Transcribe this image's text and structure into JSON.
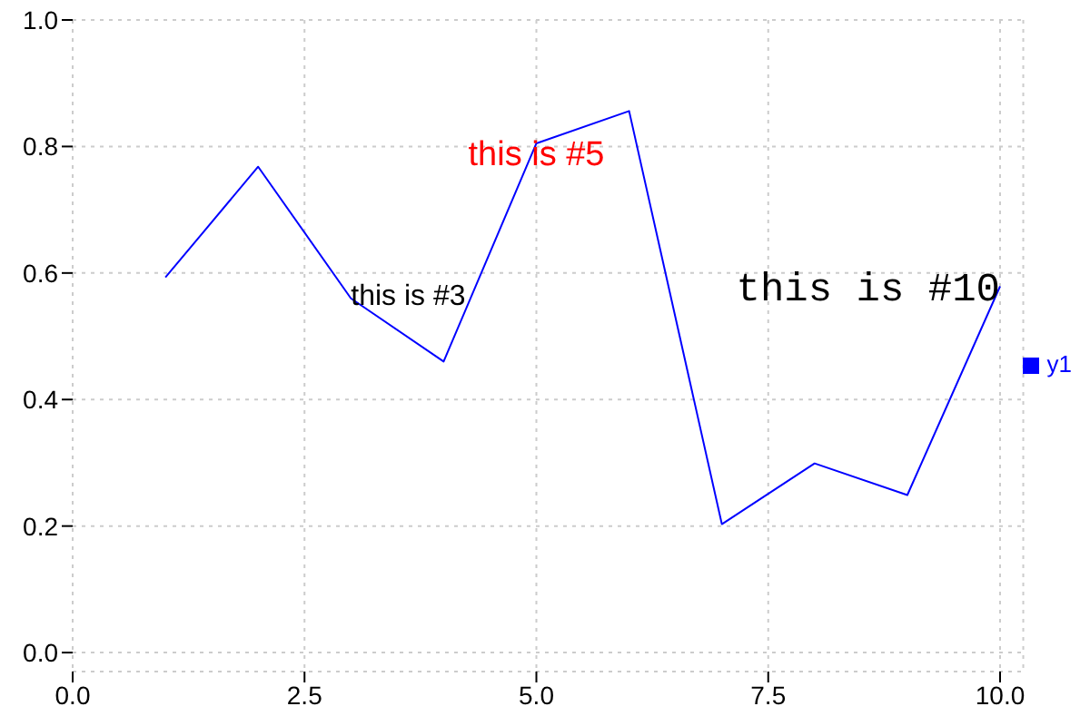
{
  "chart_data": {
    "type": "line",
    "x": [
      1,
      2,
      3,
      4,
      5,
      6,
      7,
      8,
      9,
      10
    ],
    "series": [
      {
        "name": "y1",
        "color": "#0000ff",
        "values": [
          0.593,
          0.768,
          0.56,
          0.46,
          0.805,
          0.856,
          0.203,
          0.299,
          0.249,
          0.579
        ]
      }
    ],
    "xlim": [
      0,
      10.25
    ],
    "ylim": [
      -0.03,
      1.0
    ],
    "xticks": [
      {
        "value": 0,
        "label": "0.0"
      },
      {
        "value": 2.5,
        "label": "2.5"
      },
      {
        "value": 5,
        "label": "5.0"
      },
      {
        "value": 7.5,
        "label": "7.5"
      },
      {
        "value": 10,
        "label": "10.0"
      }
    ],
    "yticks": [
      {
        "value": 0,
        "label": "0.0"
      },
      {
        "value": 0.2,
        "label": "0.2"
      },
      {
        "value": 0.4,
        "label": "0.4"
      },
      {
        "value": 0.6,
        "label": "0.6"
      },
      {
        "value": 0.8,
        "label": "0.8"
      },
      {
        "value": 1.0,
        "label": "1.0"
      }
    ],
    "annotations": [
      {
        "text": "this is #3",
        "x": 3,
        "y": 0.565
      },
      {
        "text": "this is #5",
        "x": 5,
        "y": 0.79
      },
      {
        "text": "this is #10",
        "x": 10,
        "y": 0.579
      }
    ],
    "grid": true,
    "legend": "right",
    "marker": "none",
    "line_style": "solid"
  }
}
